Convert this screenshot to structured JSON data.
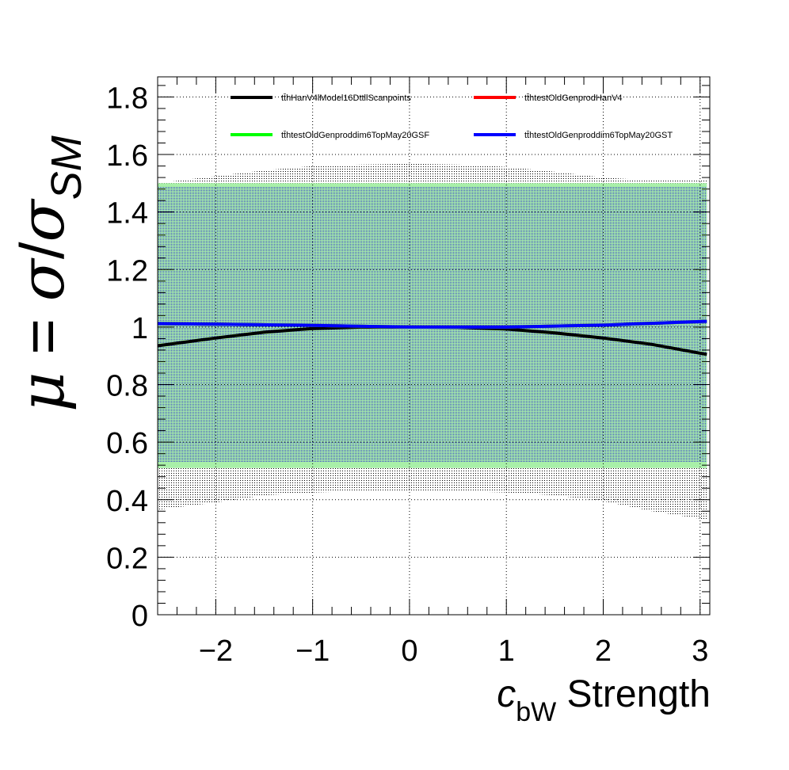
{
  "chart_data": {
    "type": "line",
    "xlabel_var": "c",
    "xlabel_sub": "bW",
    "xlabel_rest": " Strength",
    "ylabel_mu": "μ",
    "ylabel_eq": " = ",
    "ylabel_sigma": "σ",
    "ylabel_slash": "/",
    "ylabel_sigma2": "σ",
    "ylabel_sub": "SM",
    "xlim": [
      -2.6,
      3.1
    ],
    "ylim": [
      0,
      1.87
    ],
    "xticks": [
      -2,
      -1,
      0,
      1,
      2,
      3
    ],
    "xtick_labels": [
      "−2",
      "−1",
      "0",
      "1",
      "2",
      "3"
    ],
    "yticks": [
      0,
      0.2,
      0.4,
      0.6,
      0.8,
      1,
      1.2,
      1.4,
      1.6,
      1.8
    ],
    "ytick_labels": [
      "0",
      "0.2",
      "0.4",
      "0.6",
      "0.8",
      "1",
      "1.2",
      "1.4",
      "1.6",
      "1.8"
    ],
    "grid": true,
    "legend_position": "top",
    "series": [
      {
        "name": "tt̄hHanV4lModel16DttllScanpoints",
        "color": "#000000",
        "x": [
          -2.6,
          -2.0,
          -1.5,
          -1.0,
          -0.5,
          0.0,
          0.5,
          1.0,
          1.5,
          2.0,
          2.5,
          3.07
        ],
        "y": [
          0.935,
          0.962,
          0.982,
          0.995,
          1.0,
          1.0,
          0.999,
          0.993,
          0.98,
          0.962,
          0.94,
          0.905
        ],
        "band_low": [
          0.365,
          0.39,
          0.415,
          0.425,
          0.43,
          0.43,
          0.43,
          0.425,
          0.415,
          0.395,
          0.36,
          0.33
        ],
        "band_high": [
          1.5,
          1.525,
          1.545,
          1.56,
          1.565,
          1.568,
          1.565,
          1.557,
          1.54,
          1.52,
          1.51,
          1.51
        ]
      },
      {
        "name": "tt̄htestOldGenprodHanV4",
        "color": "#ff0000",
        "x": [
          -2.6,
          -2.0,
          -1.0,
          0.0,
          1.0,
          2.0,
          3.07
        ],
        "y": [
          1.012,
          1.01,
          1.006,
          1.0,
          1.0,
          1.007,
          1.02
        ]
      },
      {
        "name": "tt̄htestOldGenproddim6TopMay20GSF",
        "color": "#00ff00",
        "x": [
          -2.6,
          -2.0,
          -1.0,
          0.0,
          1.0,
          2.0,
          3.07
        ],
        "y": [
          1.012,
          1.01,
          1.006,
          1.0,
          1.0,
          1.007,
          1.02
        ],
        "band_low": [
          0.51,
          0.51,
          0.51,
          0.51,
          0.51,
          0.51,
          0.51
        ],
        "band_high": [
          1.5,
          1.5,
          1.5,
          1.5,
          1.5,
          1.5,
          1.5
        ]
      },
      {
        "name": "tt̄htestOldGenproddim6TopMay20GST",
        "color": "#0000ff",
        "x": [
          -2.6,
          -2.0,
          -1.0,
          0.0,
          1.0,
          2.0,
          3.07
        ],
        "y": [
          1.012,
          1.01,
          1.006,
          1.0,
          1.0,
          1.007,
          1.02
        ],
        "band_low": [
          0.53,
          0.53,
          0.53,
          0.53,
          0.53,
          0.53,
          0.53
        ],
        "band_high": [
          1.49,
          1.49,
          1.49,
          1.49,
          1.49,
          1.49,
          1.49
        ]
      }
    ]
  }
}
